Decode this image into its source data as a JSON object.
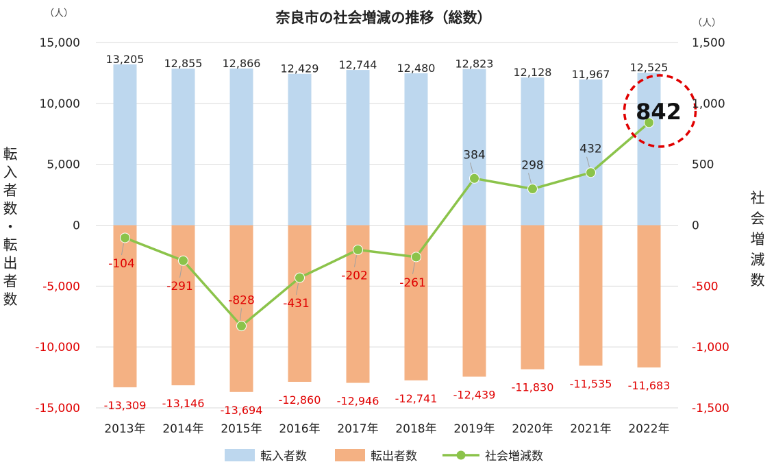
{
  "chart_data": {
    "type": "bar",
    "title": "奈良市の社会増減の推移（総数）",
    "categories": [
      "2013年",
      "2014年",
      "2015年",
      "2016年",
      "2017年",
      "2018年",
      "2019年",
      "2020年",
      "2021年",
      "2022年"
    ],
    "series": [
      {
        "name": "転入者数",
        "type": "bar",
        "axis": "left",
        "color": "#bdd7ee",
        "values": [
          13205,
          12855,
          12866,
          12429,
          12744,
          12480,
          12823,
          12128,
          11967,
          12525
        ],
        "labels": [
          "13,205",
          "12,855",
          "12,866",
          "12,429",
          "12,744",
          "12,480",
          "12,823",
          "12,128",
          "11,967",
          "12,525"
        ]
      },
      {
        "name": "転出者数",
        "type": "bar",
        "axis": "left",
        "color": "#f4b183",
        "values": [
          -13309,
          -13146,
          -13694,
          -12860,
          -12946,
          -12741,
          -12439,
          -11830,
          -11535,
          -11683
        ],
        "labels": [
          "-13,309",
          "-13,146",
          "-13,694",
          "-12,860",
          "-12,946",
          "-12,741",
          "-12,439",
          "-11,830",
          "-11,535",
          "-11,683"
        ]
      },
      {
        "name": "社会増減数",
        "type": "line",
        "axis": "right",
        "color": "#8bc34a",
        "values": [
          -104,
          -291,
          -828,
          -431,
          -202,
          -261,
          384,
          298,
          432,
          842
        ],
        "labels": [
          "-104",
          "-291",
          "-828",
          "-431",
          "-202",
          "-261",
          "384",
          "298",
          "432",
          "842"
        ]
      }
    ],
    "ylabel_left": "転入者数・転出者数",
    "ylabel_right": "社会増減数",
    "unit_left": "（人）",
    "unit_right": "（人）",
    "ylim_left": [
      -15000,
      15000
    ],
    "ylim_right": [
      -1500,
      1500
    ],
    "yticks_left": [
      "15,000",
      "10,000",
      "5,000",
      "0",
      "-5,000",
      "-10,000",
      "-15,000"
    ],
    "yticks_right": [
      "1,500",
      "1,000",
      "500",
      "0",
      "-500",
      "-1,000",
      "-1,500"
    ],
    "grid": true,
    "legend_position": "bottom",
    "highlight": {
      "category": "2022年",
      "value": "842",
      "color": "#e00000"
    }
  }
}
